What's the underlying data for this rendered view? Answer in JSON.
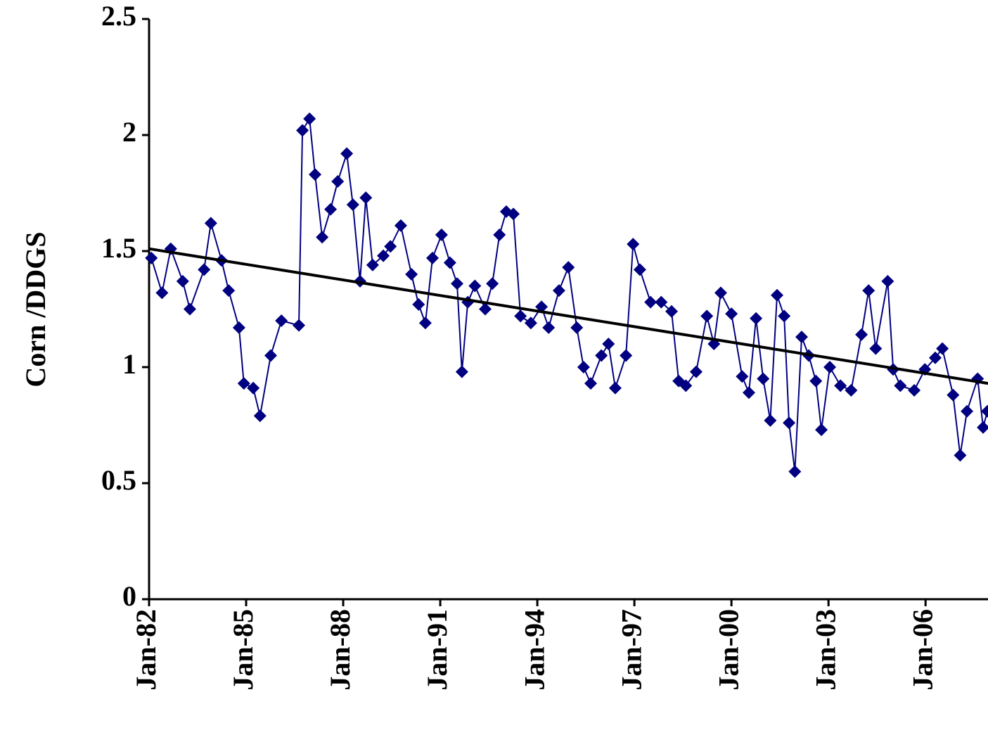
{
  "chart_data": {
    "type": "line",
    "y_label": "Corn /DDGS",
    "xlim": [
      1982,
      2007.93
    ],
    "ylim": [
      0,
      2.5
    ],
    "yticks": [
      0,
      0.5,
      1,
      1.5,
      2,
      2.5
    ],
    "xticks": [
      {
        "value": 1982,
        "label": "Jan-82"
      },
      {
        "value": 1985,
        "label": "Jan-85"
      },
      {
        "value": 1988,
        "label": "Jan-88"
      },
      {
        "value": 1991,
        "label": "Jan-91"
      },
      {
        "value": 1994,
        "label": "Jan-94"
      },
      {
        "value": 1997,
        "label": "Jan-97"
      },
      {
        "value": 2000,
        "label": "Jan-00"
      },
      {
        "value": 2003,
        "label": "Jan-03"
      },
      {
        "value": 2006,
        "label": "Jan-06"
      }
    ],
    "series": [
      {
        "color": "#000080",
        "marker": "diamond",
        "x": [
          1982.07,
          1982.4,
          1982.67,
          1983.04,
          1983.26,
          1983.7,
          1983.91,
          1984.24,
          1984.46,
          1984.78,
          1984.93,
          1985.22,
          1985.43,
          1985.76,
          1986.09,
          1986.63,
          1986.74,
          1986.96,
          1987.13,
          1987.35,
          1987.61,
          1987.83,
          1988.11,
          1988.3,
          1988.52,
          1988.7,
          1988.91,
          1989.24,
          1989.46,
          1989.78,
          1990.11,
          1990.33,
          1990.54,
          1990.76,
          1991.04,
          1991.3,
          1991.52,
          1991.67,
          1991.85,
          1992.07,
          1992.39,
          1992.61,
          1992.83,
          1993.04,
          1993.26,
          1993.48,
          1993.8,
          1994.13,
          1994.35,
          1994.67,
          1994.96,
          1995.22,
          1995.43,
          1995.65,
          1995.98,
          1996.2,
          1996.41,
          1996.74,
          1996.96,
          1997.17,
          1997.5,
          1997.83,
          1998.15,
          1998.37,
          1998.59,
          1998.91,
          1999.24,
          1999.46,
          1999.67,
          2000.0,
          2000.33,
          2000.54,
          2000.76,
          2000.98,
          2001.2,
          2001.41,
          2001.63,
          2001.78,
          2001.96,
          2002.17,
          2002.39,
          2002.61,
          2002.78,
          2003.04,
          2003.37,
          2003.7,
          2004.02,
          2004.24,
          2004.46,
          2004.83,
          2005.0,
          2005.22,
          2005.65,
          2005.98,
          2006.3,
          2006.52,
          2006.85,
          2007.07,
          2007.28,
          2007.61,
          2007.78,
          2007.91
        ],
        "values": [
          1.47,
          1.32,
          1.51,
          1.37,
          1.25,
          1.42,
          1.62,
          1.46,
          1.33,
          1.17,
          0.93,
          0.91,
          0.79,
          1.05,
          1.2,
          1.18,
          2.02,
          2.07,
          1.83,
          1.56,
          1.68,
          1.8,
          1.92,
          1.7,
          1.37,
          1.73,
          1.44,
          1.48,
          1.52,
          1.61,
          1.4,
          1.27,
          1.19,
          1.47,
          1.57,
          1.45,
          1.36,
          0.98,
          1.28,
          1.35,
          1.25,
          1.36,
          1.57,
          1.67,
          1.66,
          1.22,
          1.19,
          1.26,
          1.17,
          1.33,
          1.43,
          1.17,
          1.0,
          0.93,
          1.05,
          1.1,
          0.91,
          1.05,
          1.53,
          1.42,
          1.28,
          1.28,
          1.24,
          0.94,
          0.92,
          0.98,
          1.22,
          1.1,
          1.32,
          1.23,
          0.96,
          0.89,
          1.21,
          0.95,
          0.77,
          1.31,
          1.22,
          0.76,
          0.55,
          1.13,
          1.05,
          0.94,
          0.73,
          1.0,
          0.92,
          0.9,
          1.14,
          1.33,
          1.08,
          1.37,
          0.99,
          0.92,
          0.9,
          0.99,
          1.04,
          1.08,
          0.88,
          0.62,
          0.81,
          0.95,
          0.74,
          0.81
        ]
      },
      {
        "color": "#000000",
        "x": [
          1982,
          2007.93
        ],
        "values": [
          1.51,
          0.93
        ]
      }
    ]
  }
}
